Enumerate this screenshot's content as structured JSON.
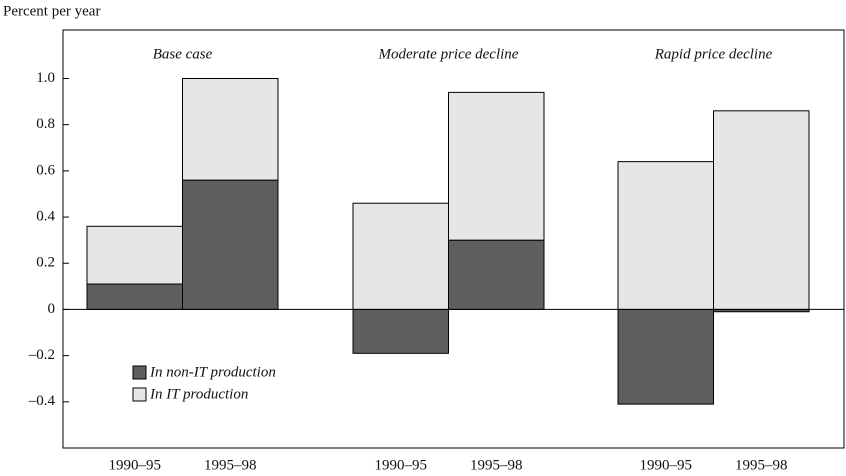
{
  "chart_data": {
    "type": "stacked_bar",
    "y_label": "Percent per year",
    "groups": [
      "Base case",
      "Moderate price decline",
      "Rapid price decline"
    ],
    "categories": [
      "1990–95",
      "1995–98",
      "1990–95",
      "1995–98",
      "1990–95",
      "1995–98"
    ],
    "series": [
      {
        "name": "In non-IT production",
        "color": "#5f5f5f",
        "values": [
          0.11,
          0.56,
          -0.19,
          0.3,
          -0.41,
          -0.01
        ]
      },
      {
        "name": "In IT production",
        "color": "#e6e6e6",
        "values": [
          0.25,
          0.44,
          0.46,
          0.64,
          0.64,
          0.86
        ]
      }
    ],
    "ylim": [
      -0.6,
      1.21
    ],
    "yticks": [
      {
        "value": 1.0,
        "label": "1.0"
      },
      0.8,
      0.6,
      0.4,
      0.2,
      0,
      {
        "value": -0.2,
        "label": "–0.2"
      },
      {
        "value": -0.4,
        "label": "–0.4"
      }
    ],
    "legend": "lower left"
  }
}
